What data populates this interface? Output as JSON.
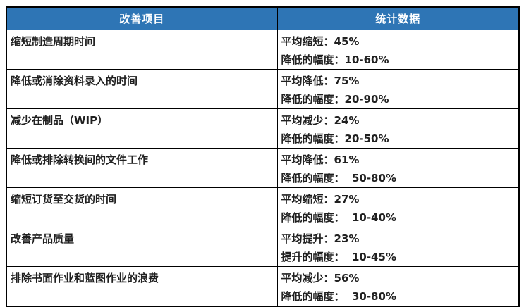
{
  "table": {
    "type": "table",
    "header": {
      "item_label": "改善项目",
      "stats_label": "统计数据"
    },
    "rows": [
      {
        "item": "缩短制造周期时间",
        "stat_line1": "平均缩短：45%",
        "stat_line2": "降低的幅度：10-60%"
      },
      {
        "item": "降低或消除资料录入的时间",
        "stat_line1": "平均降低：75%",
        "stat_line2": "降低的幅度：20-90%"
      },
      {
        "item": "减少在制品（WIP）",
        "stat_line1": "平均减少：24%",
        "stat_line2": "降低的幅度：20-50%"
      },
      {
        "item": "降低或排除转换间的文件工作",
        "stat_line1": "平均降低：61%",
        "stat_line2": "降低的幅度：  50-80%"
      },
      {
        "item": "缩短订货至交货的时间",
        "stat_line1": "平均缩短：27%",
        "stat_line2": "降低的幅度：  10-40%"
      },
      {
        "item": "改善产品质量",
        "stat_line1": "平均提升：23%",
        "stat_line2": "提升的幅度：  10-45%"
      },
      {
        "item": "排除书面作业和蓝图作业的浪费",
        "stat_line1": "平均减少：56%",
        "stat_line2": "降低的幅度：  30-80%"
      }
    ],
    "colors": {
      "header_bg": "#2E75B5",
      "header_text": "#FFFFFF",
      "border": "#000000",
      "body_text": "#202020",
      "page_bg": "#FFFFFF"
    }
  }
}
